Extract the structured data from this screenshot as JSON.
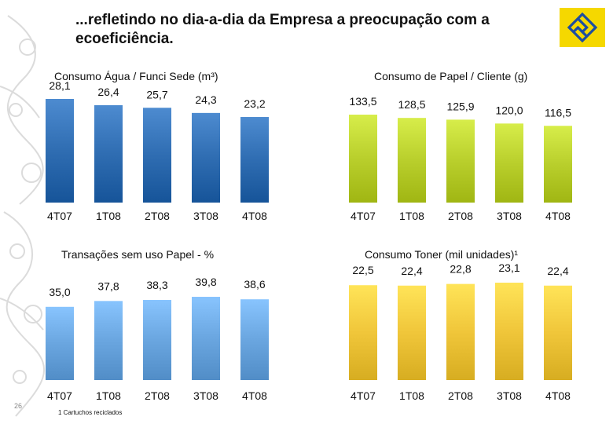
{
  "slide": {
    "title": "...refletindo no dia-a-dia da Empresa a preocupação com a ecoeficiência.",
    "page_number": "26",
    "footnote": "1 Cartuchos reciclados"
  },
  "logo": {
    "icon": "banco-do-brasil-logo-icon",
    "colors": {
      "background": "#f5d800",
      "mark": "#1d4ea0"
    }
  },
  "chart_data": [
    {
      "id": "agua",
      "type": "bar",
      "title": "Consumo Água / Funci Sede (m³)",
      "categories": [
        "4T07",
        "1T08",
        "2T08",
        "3T08",
        "4T08"
      ],
      "values": [
        28.1,
        26.4,
        25.7,
        24.3,
        23.2
      ],
      "value_labels": [
        "28,1",
        "26,4",
        "25,7",
        "24,3",
        "23,2"
      ],
      "color": "#2f6db2"
    },
    {
      "id": "papel",
      "type": "bar",
      "title": "Consumo de Papel / Cliente (g)",
      "categories": [
        "4T07",
        "1T08",
        "2T08",
        "3T08",
        "4T08"
      ],
      "values": [
        133.5,
        128.5,
        125.9,
        120.0,
        116.5
      ],
      "value_labels": [
        "133,5",
        "128,5",
        "125,9",
        "120,0",
        "116,5"
      ],
      "color": "#b9cf2c"
    },
    {
      "id": "transacoes",
      "type": "bar",
      "title": "Transações sem uso Papel - %",
      "categories": [
        "4T07",
        "1T08",
        "2T08",
        "3T08",
        "4T08"
      ],
      "values": [
        35.0,
        37.8,
        38.3,
        39.8,
        38.6
      ],
      "value_labels": [
        "35,0",
        "37,8",
        "38,3",
        "39,8",
        "38,6"
      ],
      "color": "#6aa6e0"
    },
    {
      "id": "toner",
      "type": "bar",
      "title": "Consumo Toner (mil unidades)¹",
      "categories": [
        "4T07",
        "1T08",
        "2T08",
        "3T08",
        "4T08"
      ],
      "values": [
        22.5,
        22.4,
        22.8,
        23.1,
        22.4
      ],
      "value_labels": [
        "22,5",
        "22,4",
        "22,8",
        "23,1",
        "22,4"
      ],
      "color": "#f0c63a"
    }
  ]
}
